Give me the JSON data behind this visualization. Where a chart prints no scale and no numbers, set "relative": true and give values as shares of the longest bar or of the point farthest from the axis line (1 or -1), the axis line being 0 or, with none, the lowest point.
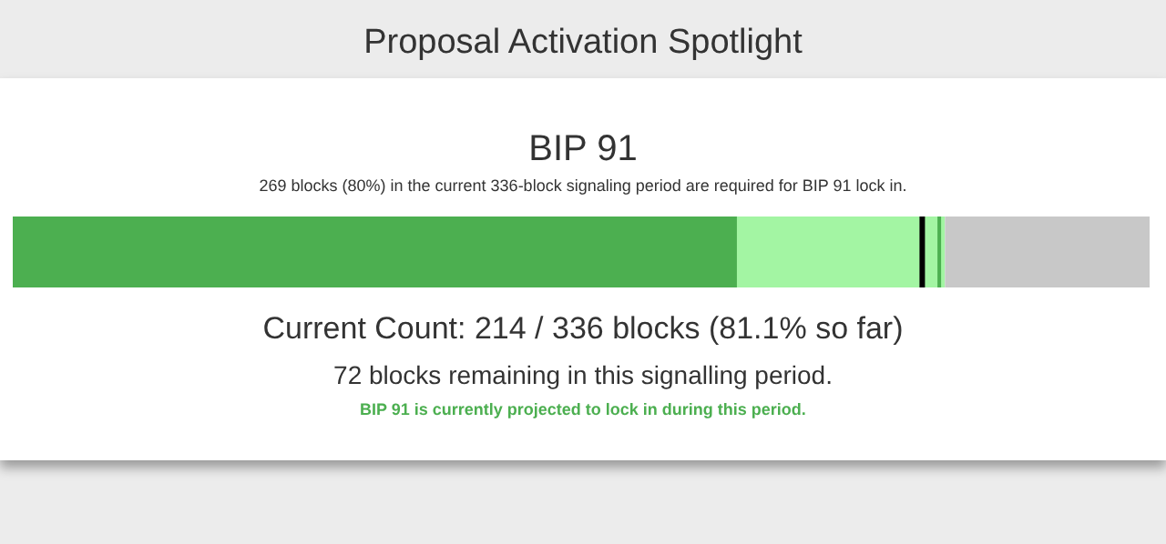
{
  "chart_data": {
    "type": "bar",
    "orientation": "horizontal",
    "stacked": true,
    "relative": true,
    "title": "Proposal Activation Spotlight",
    "subtitle": "BIP 91",
    "categories": [
      null
    ],
    "series": [
      {
        "color": "#4caf50",
        "values": [
          0.637
        ]
      },
      {
        "color": "#a3f5a3",
        "values": [
          0.183
        ]
      },
      {
        "color": "#c8c8c8",
        "values": [
          0.18
        ]
      }
    ],
    "ref_lines": [
      {
        "axis": "x",
        "value": 0.8,
        "color": "#000000"
      },
      {
        "axis": "x",
        "value": 0.815,
        "color": "#4caf50"
      }
    ],
    "annotations": [
      "269 blocks (80%) in the current 336-block signaling period are required for BIP 91 lock in.",
      "Current Count: 214 / 336 blocks (81.1% so far)",
      "72 blocks remaining in this signalling period.",
      "BIP 91 is currently projected to lock in during this period."
    ]
  }
}
